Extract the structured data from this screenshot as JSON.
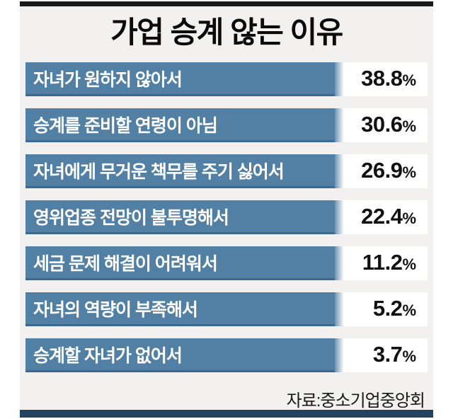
{
  "title": "가업 승계 않는 이유",
  "source": "자료:중소기업중앙회",
  "chart_data": {
    "type": "bar",
    "orientation": "horizontal",
    "title": "가업 승계 않는 이유",
    "categories": [
      "자녀가 원하지 않아서",
      "승계를 준비할 연령이 아님",
      "자녀에게 무거운 책무를 주기 싫어서",
      "영위업종 전망이 불투명해서",
      "세금 문제 해결이 어려워서",
      "자녀의 역량이 부족해서",
      "승계할 자녀가 없어서"
    ],
    "values": [
      38.8,
      30.6,
      26.9,
      22.4,
      11.2,
      5.2,
      3.7
    ],
    "value_labels": [
      "38.8",
      "30.6",
      "26.9",
      "22.4",
      "11.2",
      "5.2",
      "3.7"
    ],
    "unit": "%",
    "source": "자료:중소기업중앙회",
    "layout": {
      "bar_length": "uniform (label-strip style, not proportional)",
      "value_position": "right-aligned in white box beside each bar",
      "grid": "off",
      "legend": "none"
    },
    "colors": {
      "bar": "#527fa4",
      "bar_bottom_edge": "#3b6990",
      "panel_background": "#f2f1ef",
      "value_box": "#ffffff",
      "bar_label_text": "#ffffff",
      "value_text": "#111111",
      "title_text": "#0b0b0b",
      "top_rule": "#1a1a1a",
      "bottom_rule": "#24425f"
    }
  }
}
